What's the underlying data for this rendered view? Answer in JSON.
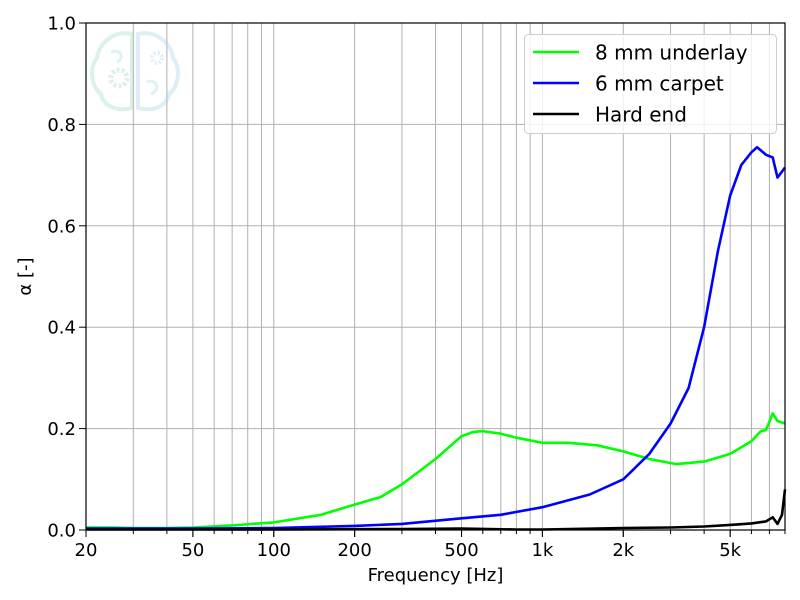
{
  "chart_data": {
    "type": "line",
    "title": "",
    "xlabel": "Frequency [Hz]",
    "ylabel": "α [-]",
    "xscale": "log",
    "xlim": [
      20,
      8000
    ],
    "ylim": [
      0.0,
      1.0
    ],
    "grid": true,
    "legend_position": "upper right",
    "xticks": [
      {
        "v": 20,
        "label": "20"
      },
      {
        "v": 50,
        "label": "50"
      },
      {
        "v": 100,
        "label": "100"
      },
      {
        "v": 200,
        "label": "200"
      },
      {
        "v": 500,
        "label": "500"
      },
      {
        "v": 1000,
        "label": "1k"
      },
      {
        "v": 2000,
        "label": "2k"
      },
      {
        "v": 5000,
        "label": "5k"
      }
    ],
    "yticks": [
      {
        "v": 0.0,
        "label": "0.0"
      },
      {
        "v": 0.2,
        "label": "0.2"
      },
      {
        "v": 0.4,
        "label": "0.4"
      },
      {
        "v": 0.6,
        "label": "0.6"
      },
      {
        "v": 0.8,
        "label": "0.8"
      },
      {
        "v": 1.0,
        "label": "1.0"
      }
    ],
    "series": [
      {
        "name": "8 mm underlay",
        "color": "#00ff00",
        "x": [
          20,
          25,
          30,
          40,
          50,
          70,
          100,
          150,
          200,
          250,
          300,
          400,
          500,
          550,
          600,
          700,
          800,
          1000,
          1250,
          1600,
          2000,
          2500,
          3150,
          4000,
          5000,
          6000,
          6500,
          6800,
          7200,
          7500,
          8000
        ],
        "y": [
          0.005,
          0.005,
          0.004,
          0.004,
          0.005,
          0.009,
          0.015,
          0.03,
          0.05,
          0.065,
          0.09,
          0.14,
          0.185,
          0.193,
          0.195,
          0.19,
          0.182,
          0.172,
          0.172,
          0.167,
          0.155,
          0.14,
          0.13,
          0.135,
          0.15,
          0.175,
          0.195,
          0.197,
          0.23,
          0.215,
          0.21
        ]
      },
      {
        "name": "6 mm carpet",
        "color": "#0000ff",
        "x": [
          20,
          50,
          100,
          200,
          300,
          500,
          700,
          1000,
          1500,
          2000,
          2500,
          3000,
          3500,
          4000,
          4500,
          5000,
          5500,
          6000,
          6300,
          6800,
          7200,
          7500,
          8000
        ],
        "y": [
          0.003,
          0.003,
          0.004,
          0.008,
          0.012,
          0.023,
          0.03,
          0.045,
          0.07,
          0.1,
          0.15,
          0.21,
          0.28,
          0.4,
          0.55,
          0.66,
          0.72,
          0.745,
          0.755,
          0.74,
          0.735,
          0.695,
          0.715
        ]
      },
      {
        "name": "Hard end",
        "color": "#000000",
        "x": [
          20,
          100,
          300,
          500,
          800,
          1000,
          2000,
          3000,
          4000,
          5000,
          6000,
          6800,
          7200,
          7500,
          7800,
          8000
        ],
        "y": [
          0.001,
          0.001,
          0.002,
          0.003,
          0.001,
          0.001,
          0.004,
          0.005,
          0.007,
          0.01,
          0.013,
          0.017,
          0.025,
          0.012,
          0.03,
          0.08
        ]
      }
    ]
  },
  "watermark": {
    "icon": "brain-gear-icon"
  }
}
